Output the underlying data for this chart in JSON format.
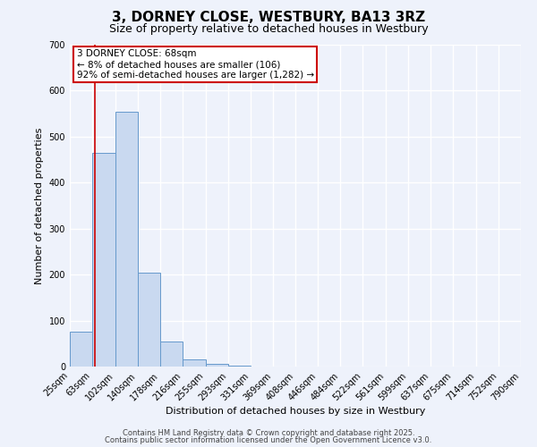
{
  "title": "3, DORNEY CLOSE, WESTBURY, BA13 3RZ",
  "subtitle": "Size of property relative to detached houses in Westbury",
  "xlabel": "Distribution of detached houses by size in Westbury",
  "ylabel": "Number of detached properties",
  "bin_edges": [
    25,
    63,
    102,
    140,
    178,
    216,
    255,
    293,
    331,
    369,
    408,
    446,
    484,
    522,
    561,
    599,
    637,
    675,
    714,
    752,
    790
  ],
  "bar_heights": [
    75,
    465,
    555,
    205,
    55,
    15,
    5,
    2,
    0,
    0,
    0,
    0,
    0,
    0,
    0,
    0,
    0,
    0,
    0,
    0
  ],
  "bar_color": "#c9d9f0",
  "bar_edgecolor": "#6699cc",
  "property_size": 68,
  "vline_color": "#cc0000",
  "annotation_line1": "3 DORNEY CLOSE: 68sqm",
  "annotation_line2": "← 8% of detached houses are smaller (106)",
  "annotation_line3": "92% of semi-detached houses are larger (1,282) →",
  "annotation_box_edgecolor": "#cc0000",
  "annotation_box_facecolor": "#ffffff",
  "ylim": [
    0,
    700
  ],
  "yticks": [
    0,
    100,
    200,
    300,
    400,
    500,
    600,
    700
  ],
  "background_color": "#eef2fb",
  "grid_color": "#ffffff",
  "footer_line1": "Contains HM Land Registry data © Crown copyright and database right 2025.",
  "footer_line2": "Contains public sector information licensed under the Open Government Licence v3.0.",
  "title_fontsize": 11,
  "subtitle_fontsize": 9,
  "xlabel_fontsize": 8,
  "ylabel_fontsize": 8,
  "tick_fontsize": 7,
  "footer_fontsize": 6,
  "annot_fontsize": 7.5
}
